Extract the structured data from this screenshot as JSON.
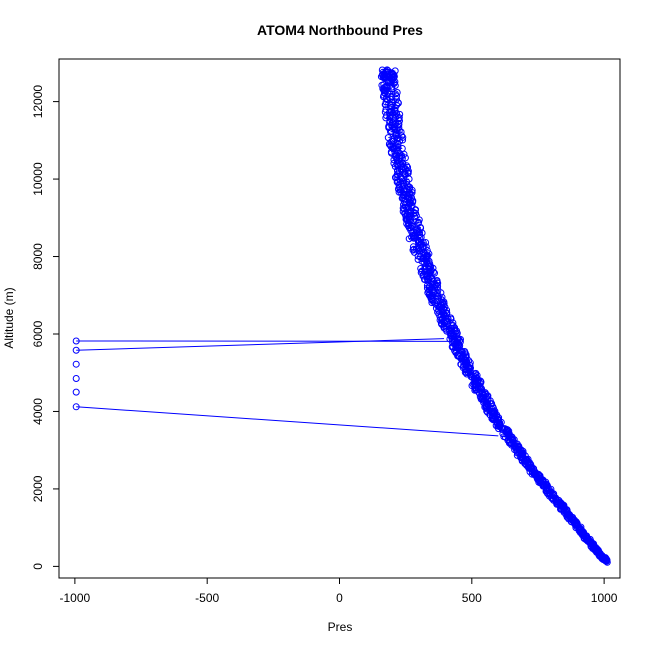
{
  "chart_data": {
    "type": "scatter",
    "title": "ATOM4 Northbound Pres",
    "xlabel": "Pres",
    "ylabel": "Altitude (m)",
    "xlim": [
      -1060,
      1060
    ],
    "ylim": [
      -300,
      13100
    ],
    "xticks": [
      -1000,
      -500,
      0,
      500,
      1000
    ],
    "yticks": [
      0,
      2000,
      4000,
      6000,
      8000,
      10000,
      12000
    ],
    "xtick_labels": [
      "-1000",
      "-500",
      "0",
      "500",
      "1000"
    ],
    "ytick_labels": [
      "0",
      "2000",
      "4000",
      "6000",
      "8000",
      "10000",
      "12000"
    ],
    "grid": false,
    "legend": "none",
    "series_color": "#0000ff",
    "marker": "open-circle",
    "profile": [
      [
        1010,
        120
      ],
      [
        985,
        300
      ],
      [
        955,
        550
      ],
      [
        920,
        850
      ],
      [
        885,
        1150
      ],
      [
        850,
        1450
      ],
      [
        815,
        1750
      ],
      [
        780,
        2050
      ],
      [
        745,
        2350
      ],
      [
        710,
        2650
      ],
      [
        675,
        2980
      ],
      [
        640,
        3320
      ],
      [
        605,
        3680
      ],
      [
        575,
        4020
      ],
      [
        545,
        4380
      ],
      [
        515,
        4750
      ],
      [
        485,
        5120
      ],
      [
        460,
        5480
      ],
      [
        435,
        5850
      ],
      [
        410,
        6230
      ],
      [
        385,
        6620
      ],
      [
        362,
        7020
      ],
      [
        340,
        7430
      ],
      [
        320,
        7850
      ],
      [
        300,
        8280
      ],
      [
        282,
        8720
      ],
      [
        265,
        9170
      ],
      [
        250,
        9630
      ],
      [
        236,
        10100
      ],
      [
        223,
        10580
      ],
      [
        212,
        11070
      ],
      [
        202,
        11580
      ],
      [
        193,
        12100
      ],
      [
        186,
        12600
      ],
      [
        183,
        12800
      ]
    ],
    "spikes": [
      {
        "from": [
          600,
          3370
        ],
        "to": [
          -995,
          4120
        ]
      },
      {
        "from": [
          395,
          5880
        ],
        "to": [
          -995,
          5580
        ]
      },
      {
        "from": [
          425,
          5810
        ],
        "to": [
          -995,
          5820
        ]
      }
    ],
    "outliers": [
      [
        -995,
        4120
      ],
      [
        -995,
        4500
      ],
      [
        -995,
        4850
      ],
      [
        -995,
        5220
      ],
      [
        -995,
        5580
      ],
      [
        -995,
        5820
      ]
    ]
  }
}
